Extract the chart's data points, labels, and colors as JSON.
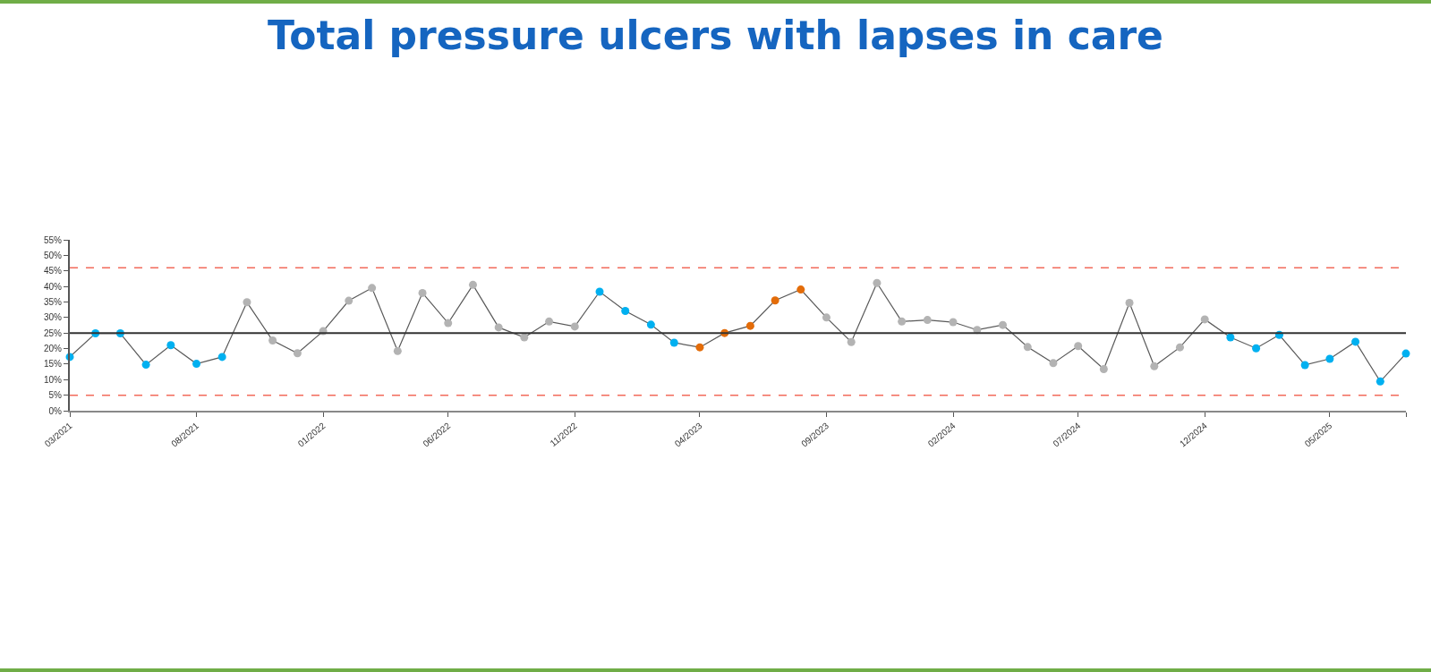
{
  "chart_data": {
    "type": "line",
    "title": "Total pressure ulcers with lapses in care",
    "x": [
      "2021-03",
      "2021-04",
      "2021-05",
      "2021-06",
      "2021-07",
      "2021-08",
      "2021-09",
      "2021-10",
      "2021-11",
      "2021-12",
      "2022-01",
      "2022-02",
      "2022-03",
      "2022-04",
      "2022-05",
      "2022-06",
      "2022-07",
      "2022-08",
      "2022-09",
      "2022-10",
      "2022-11",
      "2022-12",
      "2023-01",
      "2023-02",
      "2023-03",
      "2023-04",
      "2023-05",
      "2023-06",
      "2023-07",
      "2023-08",
      "2023-09",
      "2023-10",
      "2023-11",
      "2023-12",
      "2024-01",
      "2024-02",
      "2024-03",
      "2024-04",
      "2024-05",
      "2024-06",
      "2024-07",
      "2024-08",
      "2024-09",
      "2024-10",
      "2024-11",
      "2024-12",
      "2025-01",
      "2025-02",
      "2025-03",
      "2025-04",
      "2025-05",
      "2025-06",
      "2025-07",
      "2025-08"
    ],
    "series": [
      {
        "color": "#595959",
        "values": [
          17.3,
          24.9,
          24.9,
          14.8,
          21.1,
          15.1,
          17.3,
          34.9,
          22.6,
          18.5,
          25.6,
          35.4,
          39.5,
          19.2,
          37.9,
          28.2,
          40.5,
          26.8,
          23.6,
          28.7,
          27.1,
          38.3,
          32.1,
          27.7,
          21.9,
          20.4,
          25.0,
          27.3,
          35.5,
          39.0,
          30.0,
          22.1,
          41.1,
          28.7,
          29.2,
          28.5,
          26.0,
          27.6,
          20.5,
          15.3,
          20.8,
          13.4,
          34.7,
          14.3,
          20.4,
          29.4,
          23.6,
          20.1,
          24.4,
          14.7,
          16.7,
          22.2,
          9.4,
          18.4
        ],
        "colors": [
          "#00b0f0",
          "#00b0f0",
          "#00b0f0",
          "#00b0f0",
          "#00b0f0",
          "#00b0f0",
          "#00b0f0",
          "#b3b3b3",
          "#b3b3b3",
          "#b3b3b3",
          "#b3b3b3",
          "#b3b3b3",
          "#b3b3b3",
          "#b3b3b3",
          "#b3b3b3",
          "#b3b3b3",
          "#b3b3b3",
          "#b3b3b3",
          "#b3b3b3",
          "#b3b3b3",
          "#b3b3b3",
          "#00b0f0",
          "#00b0f0",
          "#00b0f0",
          "#00b0f0",
          "#e36c09",
          "#e36c09",
          "#e36c09",
          "#e36c09",
          "#e36c09",
          "#b3b3b3",
          "#b3b3b3",
          "#b3b3b3",
          "#b3b3b3",
          "#b3b3b3",
          "#b3b3b3",
          "#b3b3b3",
          "#b3b3b3",
          "#b3b3b3",
          "#b3b3b3",
          "#b3b3b3",
          "#b3b3b3",
          "#b3b3b3",
          "#b3b3b3",
          "#b3b3b3",
          "#b3b3b3",
          "#00b0f0",
          "#00b0f0",
          "#00b0f0",
          "#00b0f0",
          "#00b0f0",
          "#00b0f0",
          "#00b0f0",
          "#00b0f0"
        ]
      }
    ],
    "xlim": [
      "2021-03",
      "2025-08"
    ],
    "xticks": [
      {
        "value": "2021-03",
        "label": "03/2021"
      },
      {
        "value": "2021-08",
        "label": "08/2021"
      },
      {
        "value": "2022-01",
        "label": "01/2022"
      },
      {
        "value": "2022-06",
        "label": "06/2022"
      },
      {
        "value": "2022-11",
        "label": "11/2022"
      },
      {
        "value": "2023-04",
        "label": "04/2023"
      },
      {
        "value": "2023-09",
        "label": "09/2023"
      },
      {
        "value": "2024-02",
        "label": "02/2024"
      },
      {
        "value": "2024-07",
        "label": "07/2024"
      },
      {
        "value": "2024-12",
        "label": "12/2024"
      },
      {
        "value": "2025-05",
        "label": "05/2025"
      },
      {
        "value": "2025-08",
        "label": null
      }
    ],
    "ylim": [
      0,
      55
    ],
    "yticks": [
      {
        "value": 0,
        "label": "0%"
      },
      {
        "value": 5,
        "label": "5%"
      },
      {
        "value": 10,
        "label": "10%"
      },
      {
        "value": 15,
        "label": "15%"
      },
      {
        "value": 20,
        "label": "20%"
      },
      {
        "value": 25,
        "label": "25%"
      },
      {
        "value": 30,
        "label": "30%"
      },
      {
        "value": 35,
        "label": "35%"
      },
      {
        "value": 40,
        "label": "40%"
      },
      {
        "value": 45,
        "label": "45%"
      },
      {
        "value": 50,
        "label": "50%"
      },
      {
        "value": 55,
        "label": "55%"
      }
    ],
    "ref_lines": [
      {
        "axis": "y",
        "value": 25,
        "color": "#333333",
        "line_style": "solid"
      },
      {
        "axis": "y",
        "value": 46,
        "color": "#f26b5b",
        "line_style": "dashed"
      },
      {
        "axis": "y",
        "value": 5,
        "color": "#f26b5b",
        "line_style": "dashed"
      }
    ],
    "marker": "circle",
    "line_style": "solid"
  }
}
